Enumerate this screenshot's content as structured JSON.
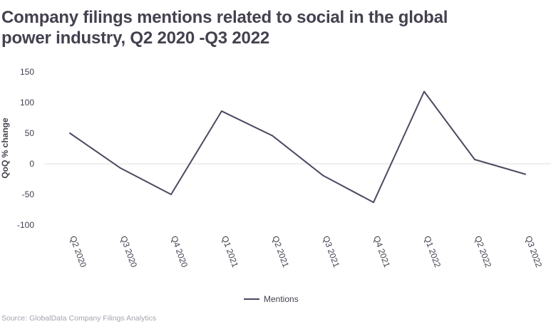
{
  "title": "Company filings mentions related to social in the global power industry, Q2 2020 -Q3 2022",
  "source": "Source: GlobalData Company Filings Analytics",
  "colors": {
    "line": "#4d4960",
    "text": "#45414f",
    "zero_line": "#dcdcdc",
    "source": "#a5a2ad"
  },
  "chart_data": {
    "type": "line",
    "title": "Company filings mentions related to social in the global power industry, Q2 2020 -Q3 2022",
    "xlabel": "",
    "ylabel": "QoQ % change",
    "ylim": [
      -100,
      150
    ],
    "yticks": [
      150,
      100,
      50,
      0,
      -50,
      -100
    ],
    "grid": false,
    "zero_line": true,
    "legend_position": "bottom-center",
    "categories": [
      "Q2 2020",
      "Q3 2020",
      "Q4 2020",
      "Q1 2021",
      "Q2 2021",
      "Q3 2021",
      "Q4 2021",
      "Q1 2022",
      "Q2 2022",
      "Q3 2022"
    ],
    "series": [
      {
        "name": "Mentions",
        "values": [
          50,
          -7,
          -50,
          86,
          46,
          -19,
          -63,
          118,
          7,
          -17
        ]
      }
    ]
  }
}
